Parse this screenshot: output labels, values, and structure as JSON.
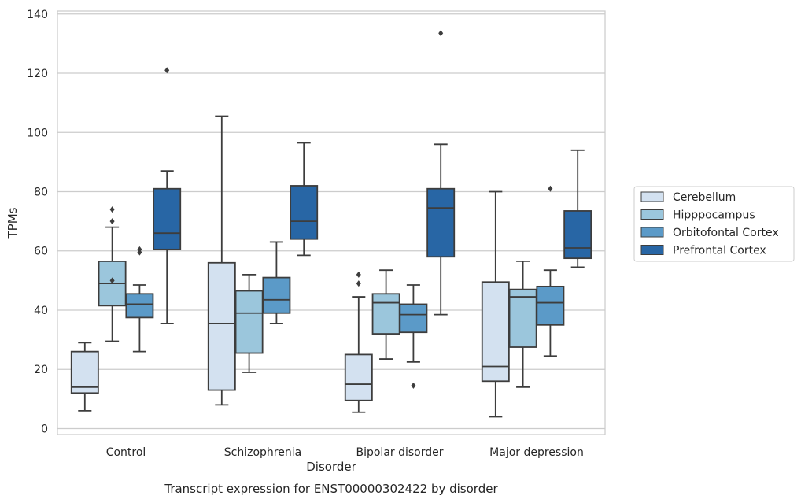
{
  "chart_data": {
    "type": "box",
    "xlabel": "Disorder",
    "ylabel": "TPMs",
    "caption": "Transcript expression for ENST00000302422 by disorder",
    "ylim": [
      -2,
      141
    ],
    "yticks": [
      0,
      20,
      40,
      60,
      80,
      100,
      120,
      140
    ],
    "grid": "horizontal",
    "legend_position": "right",
    "categories": [
      "Control",
      "Schizophrenia",
      "Bipolar disorder",
      "Major depression"
    ],
    "series": [
      {
        "name": "Cerebellum",
        "color": "#d3e1f0",
        "boxes": [
          {
            "whisker_low": 6,
            "q1": 12,
            "median": 14,
            "q3": 26,
            "whisker_high": 29,
            "outliers": []
          },
          {
            "whisker_low": 8,
            "q1": 13,
            "median": 35.5,
            "q3": 56,
            "whisker_high": 105.5,
            "outliers": []
          },
          {
            "whisker_low": 5.5,
            "q1": 9.5,
            "median": 15,
            "q3": 25,
            "whisker_high": 44.5,
            "outliers": [
              49,
              52
            ]
          },
          {
            "whisker_low": 4,
            "q1": 16,
            "median": 21,
            "q3": 49.5,
            "whisker_high": 80,
            "outliers": []
          }
        ]
      },
      {
        "name": "Hipppocampus",
        "color": "#9bc6dc",
        "boxes": [
          {
            "whisker_low": 29.5,
            "q1": 41.5,
            "median": 49,
            "q3": 56.5,
            "whisker_high": 68,
            "outliers": [
              50,
              70,
              74
            ]
          },
          {
            "whisker_low": 19,
            "q1": 25.5,
            "median": 39,
            "q3": 46.5,
            "whisker_high": 52,
            "outliers": []
          },
          {
            "whisker_low": 23.5,
            "q1": 32,
            "median": 42.5,
            "q3": 45.5,
            "whisker_high": 53.5,
            "outliers": []
          },
          {
            "whisker_low": 14,
            "q1": 27.5,
            "median": 44.5,
            "q3": 47,
            "whisker_high": 56.5,
            "outliers": []
          }
        ]
      },
      {
        "name": "Orbitofontal Cortex",
        "color": "#5b9ac8",
        "boxes": [
          {
            "whisker_low": 26,
            "q1": 37.5,
            "median": 42,
            "q3": 45.5,
            "whisker_high": 48.5,
            "outliers": [
              59.5,
              60.5
            ]
          },
          {
            "whisker_low": 35.5,
            "q1": 39,
            "median": 43.5,
            "q3": 51,
            "whisker_high": 63,
            "outliers": []
          },
          {
            "whisker_low": 22.5,
            "q1": 32.5,
            "median": 38.5,
            "q3": 42,
            "whisker_high": 48.5,
            "outliers": [
              14.5
            ]
          },
          {
            "whisker_low": 24.5,
            "q1": 35,
            "median": 42.5,
            "q3": 48,
            "whisker_high": 53.5,
            "outliers": [
              81
            ]
          }
        ]
      },
      {
        "name": "Prefrontal Cortex",
        "color": "#2866a5",
        "boxes": [
          {
            "whisker_low": 35.5,
            "q1": 60.5,
            "median": 66,
            "q3": 81,
            "whisker_high": 87,
            "outliers": [
              121
            ]
          },
          {
            "whisker_low": 58.5,
            "q1": 64,
            "median": 70,
            "q3": 82,
            "whisker_high": 96.5,
            "outliers": []
          },
          {
            "whisker_low": 38.5,
            "q1": 58,
            "median": 74.5,
            "q3": 81,
            "whisker_high": 96,
            "outliers": [
              133.5
            ]
          },
          {
            "whisker_low": 54.5,
            "q1": 57.5,
            "median": 61,
            "q3": 73.5,
            "whisker_high": 94,
            "outliers": []
          }
        ]
      }
    ]
  }
}
